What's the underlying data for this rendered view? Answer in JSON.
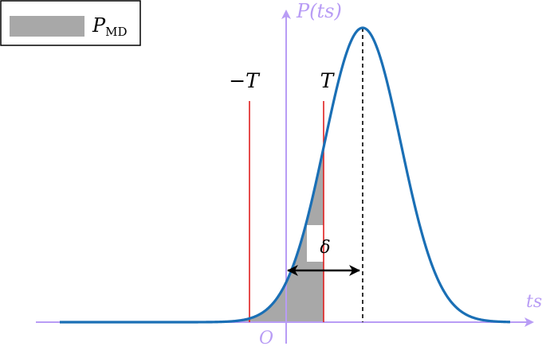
{
  "legend": {
    "symbol": "P",
    "subscript": "MD"
  },
  "axes": {
    "x_label": "ts",
    "y_label": "P(ts)",
    "origin_label": "O"
  },
  "markers": {
    "neg_threshold": "−T",
    "pos_threshold": "T",
    "offset": "δ"
  },
  "colors": {
    "axis": "#b89cf5",
    "curve": "#1a6fb5",
    "threshold": "#e02020",
    "shade": "#a8a8a8",
    "mean_line": "#000000"
  }
}
